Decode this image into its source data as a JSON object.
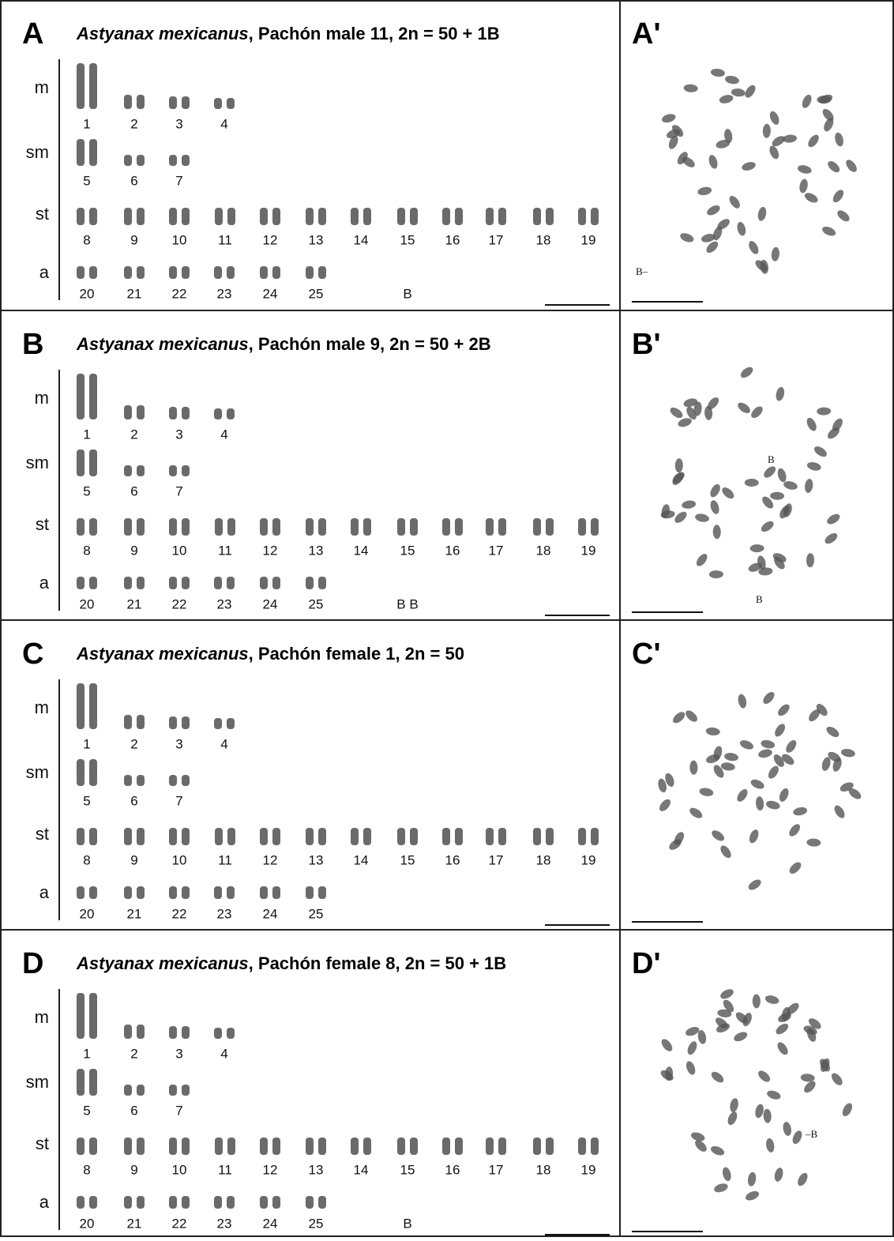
{
  "panels": [
    {
      "letter": "A",
      "species": "Astyanax mexicanus",
      "title_rest": ", Pachón male 11, 2n = 50 + 1B",
      "rows": [
        {
          "label": "m",
          "numbers": [
            1,
            2,
            3,
            4
          ]
        },
        {
          "label": "sm",
          "numbers": [
            5,
            6,
            7
          ]
        },
        {
          "label": "st",
          "numbers": [
            8,
            9,
            10,
            11,
            12,
            13,
            14,
            15,
            16,
            17,
            18,
            19
          ]
        },
        {
          "label": "a",
          "numbers": [
            20,
            21,
            22,
            23,
            24,
            25
          ]
        }
      ],
      "b_label": "B",
      "metaphase_letter": "A'",
      "metaphase_b_labels": [
        "B–"
      ]
    },
    {
      "letter": "B",
      "species": "Astyanax mexicanus",
      "title_rest": ", Pachón male 9, 2n = 50 + 2B",
      "rows": [
        {
          "label": "m",
          "numbers": [
            1,
            2,
            3,
            4
          ]
        },
        {
          "label": "sm",
          "numbers": [
            5,
            6,
            7
          ]
        },
        {
          "label": "st",
          "numbers": [
            8,
            9,
            10,
            11,
            12,
            13,
            14,
            15,
            16,
            17,
            18,
            19
          ]
        },
        {
          "label": "a",
          "numbers": [
            20,
            21,
            22,
            23,
            24,
            25
          ]
        }
      ],
      "b_label": "B B",
      "metaphase_letter": "B'",
      "metaphase_b_labels": [
        "B",
        "B"
      ]
    },
    {
      "letter": "C",
      "species": "Astyanax mexicanus",
      "title_rest": ", Pachón female 1, 2n = 50",
      "rows": [
        {
          "label": "m",
          "numbers": [
            1,
            2,
            3,
            4
          ]
        },
        {
          "label": "sm",
          "numbers": [
            5,
            6,
            7
          ]
        },
        {
          "label": "st",
          "numbers": [
            8,
            9,
            10,
            11,
            12,
            13,
            14,
            15,
            16,
            17,
            18,
            19
          ]
        },
        {
          "label": "a",
          "numbers": [
            20,
            21,
            22,
            23,
            24,
            25
          ]
        }
      ],
      "metaphase_letter": "C'"
    },
    {
      "letter": "D",
      "species": "Astyanax mexicanus",
      "title_rest": ", Pachón female 8, 2n = 50 + 1B",
      "rows": [
        {
          "label": "m",
          "numbers": [
            1,
            2,
            3,
            4
          ]
        },
        {
          "label": "sm",
          "numbers": [
            5,
            6,
            7
          ]
        },
        {
          "label": "st",
          "numbers": [
            8,
            9,
            10,
            11,
            12,
            13,
            14,
            15,
            16,
            17,
            18,
            19
          ]
        },
        {
          "label": "a",
          "numbers": [
            20,
            21,
            22,
            23,
            24,
            25
          ]
        }
      ],
      "b_label": "B",
      "metaphase_letter": "D'",
      "metaphase_b_labels": [
        "–B"
      ]
    }
  ]
}
